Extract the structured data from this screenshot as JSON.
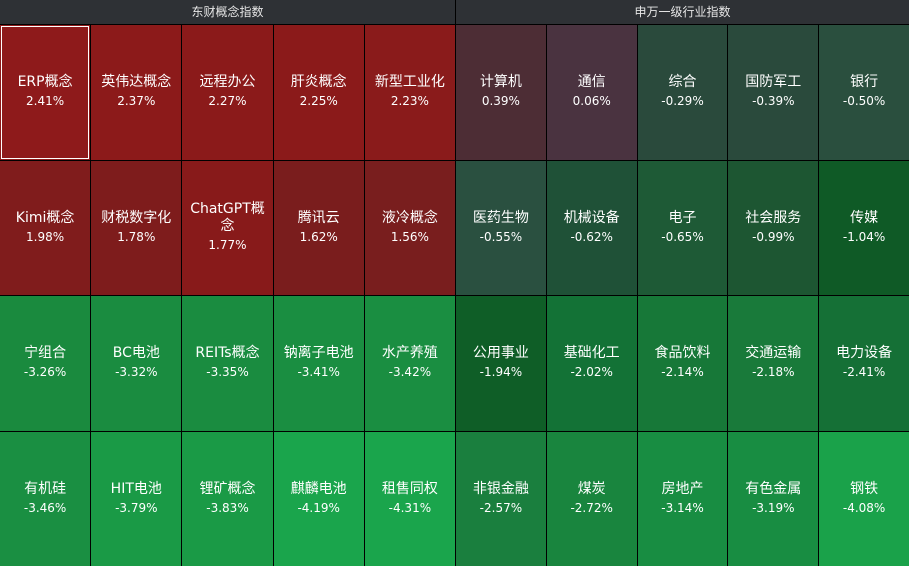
{
  "panels": [
    {
      "title": "东财概念指数",
      "tiles": [
        {
          "name": "ERP概念",
          "change": "2.41%",
          "color": "#8e1a1b"
        },
        {
          "name": "英伟达概念",
          "change": "2.37%",
          "color": "#8c1a1a"
        },
        {
          "name": "远程办公",
          "change": "2.27%",
          "color": "#8b1a1a"
        },
        {
          "name": "肝炎概念",
          "change": "2.25%",
          "color": "#8b1a1a"
        },
        {
          "name": "新型工业化",
          "change": "2.23%",
          "color": "#8a1b1b"
        },
        {
          "name": "Kimi概念",
          "change": "1.98%",
          "color": "#801c1c"
        },
        {
          "name": "财税数字化",
          "change": "1.78%",
          "color": "#7e1c1c"
        },
        {
          "name": "ChatGPT概念",
          "change": "1.77%",
          "color": "#881a1a"
        },
        {
          "name": "腾讯云",
          "change": "1.62%",
          "color": "#7a1d1d"
        },
        {
          "name": "液冷概念",
          "change": "1.56%",
          "color": "#791e1e"
        },
        {
          "name": "宁组合",
          "change": "-3.26%",
          "color": "#1a8a3e"
        },
        {
          "name": "BC电池",
          "change": "-3.32%",
          "color": "#1a8c40"
        },
        {
          "name": "REITs概念",
          "change": "-3.35%",
          "color": "#1a8c40"
        },
        {
          "name": "钠离子电池",
          "change": "-3.41%",
          "color": "#1a8e41"
        },
        {
          "name": "水产养殖",
          "change": "-3.42%",
          "color": "#1a8e41"
        },
        {
          "name": "有机硅",
          "change": "-3.46%",
          "color": "#1a8f42"
        },
        {
          "name": "HIT电池",
          "change": "-3.79%",
          "color": "#1a9a46"
        },
        {
          "name": "锂矿概念",
          "change": "-3.83%",
          "color": "#1a9a46"
        },
        {
          "name": "麒麟电池",
          "change": "-4.19%",
          "color": "#1aa54c"
        },
        {
          "name": "租售同权",
          "change": "-4.31%",
          "color": "#1aa54c"
        }
      ]
    },
    {
      "title": "申万一级行业指数",
      "tiles": [
        {
          "name": "计算机",
          "change": "0.39%",
          "color": "#4d2d35"
        },
        {
          "name": "通信",
          "change": "0.06%",
          "color": "#4a3340"
        },
        {
          "name": "综合",
          "change": "-0.29%",
          "color": "#2a4a3c"
        },
        {
          "name": "国防军工",
          "change": "-0.39%",
          "color": "#2a4a3c"
        },
        {
          "name": "银行",
          "change": "-0.50%",
          "color": "#2a4f3e"
        },
        {
          "name": "医药生物",
          "change": "-0.55%",
          "color": "#2a5040"
        },
        {
          "name": "机械设备",
          "change": "-0.62%",
          "color": "#1f5137"
        },
        {
          "name": "电子",
          "change": "-0.65%",
          "color": "#1e5a36"
        },
        {
          "name": "社会服务",
          "change": "-0.99%",
          "color": "#1d5632"
        },
        {
          "name": "传媒",
          "change": "-1.04%",
          "color": "#0f5a26"
        },
        {
          "name": "公用事业",
          "change": "-1.94%",
          "color": "#0f5e27"
        },
        {
          "name": "基础化工",
          "change": "-2.02%",
          "color": "#137236"
        },
        {
          "name": "食品饮料",
          "change": "-2.14%",
          "color": "#177838"
        },
        {
          "name": "交通运输",
          "change": "-2.18%",
          "color": "#197a3a"
        },
        {
          "name": "电力设备",
          "change": "-2.41%",
          "color": "#157036"
        },
        {
          "name": "非银金融",
          "change": "-2.57%",
          "color": "#1a7f3e"
        },
        {
          "name": "煤炭",
          "change": "-2.72%",
          "color": "#19853e"
        },
        {
          "name": "房地产",
          "change": "-3.14%",
          "color": "#188d42"
        },
        {
          "name": "有色金属",
          "change": "-3.19%",
          "color": "#188d42"
        },
        {
          "name": "钢铁",
          "change": "-4.08%",
          "color": "#1aa24a"
        }
      ]
    }
  ]
}
